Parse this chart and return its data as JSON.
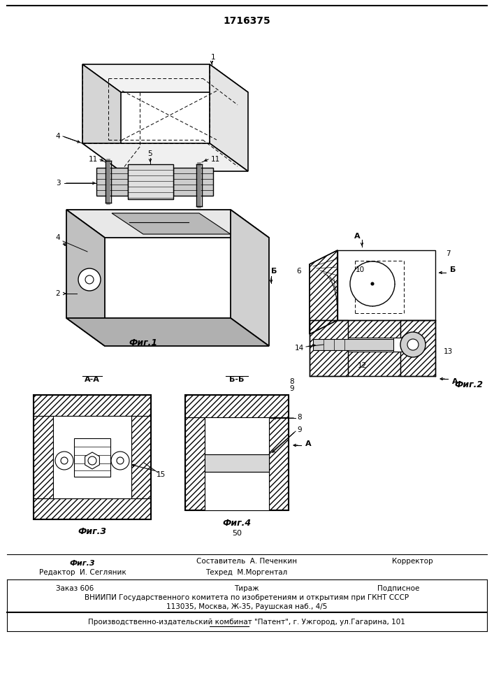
{
  "title": "1716375",
  "bg_color": "#ffffff",
  "line_color": "#000000",
  "fig1_label": "Фиг.1",
  "fig2_label": "Фиг.2",
  "fig3_label": "Фиг.3",
  "fig4_label": "Фиг.4",
  "label_1": "1",
  "label_2": "2",
  "label_3": "3",
  "label_4": "4",
  "label_5": "5",
  "label_6": "6",
  "label_7": "7",
  "label_8": "8",
  "label_9": "9",
  "label_10": "10",
  "label_11": "11",
  "label_12": "12",
  "label_13": "13",
  "label_14": "14",
  "label_15": "15",
  "label_A": "A",
  "label_B": "Б",
  "footer_fig3": "Фиг.3",
  "footer_editor": "Редактор  И. Сегляник",
  "footer_compiler": "Составитель  А. Печенкин",
  "footer_techred": "Техред  М.Моргентал",
  "footer_corrector": "Корректор",
  "footer_order": "Заказ 606",
  "footer_tirazh": "Тираж",
  "footer_tirazh_num": "50",
  "footer_podpisnoe": "Подписное",
  "footer_vniiipi": "ВНИИПИ Государственного комитета по изобретениям и открытиям при ГКНТ СССР",
  "footer_addr": "113035, Москва, Ж-35, Раушская наб., 4/5",
  "footer_patent": "Производственно-издательский комбинат \"Патент\", г. Ужгород, ул.Гагарина, 101"
}
